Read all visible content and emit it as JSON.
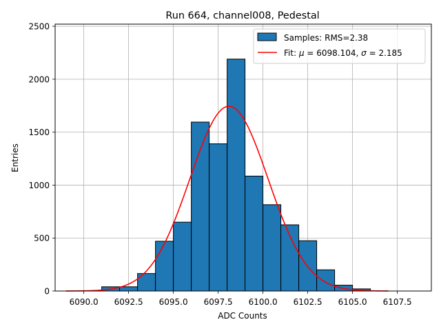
{
  "chart_data": {
    "type": "bar",
    "title": "Run 664, channel008, Pedestal",
    "xlabel": "ADC Counts",
    "ylabel": "Entries",
    "xlim": [
      6088.4,
      6109.4
    ],
    "ylim": [
      0,
      2520
    ],
    "x_ticks": [
      6090.0,
      6092.5,
      6095.0,
      6097.5,
      6100.0,
      6102.5,
      6105.0,
      6107.5
    ],
    "x_tick_labels": [
      "6090.0",
      "6092.5",
      "6095.0",
      "6097.5",
      "6100.0",
      "6102.5",
      "6105.0",
      "6107.5"
    ],
    "y_ticks": [
      0,
      500,
      1000,
      1500,
      2000,
      2500
    ],
    "y_tick_labels": [
      "0",
      "500",
      "1000",
      "1500",
      "2000",
      "2500"
    ],
    "grid": true,
    "legend_placement": "upper-right",
    "histogram": {
      "name": "Samples: RMS=2.38",
      "color": "#1f77b4",
      "edge_color": "#000000",
      "bins": [
        {
          "x0": 6091.0,
          "x1": 6092.0,
          "count": 40
        },
        {
          "x0": 6092.0,
          "x1": 6093.0,
          "count": 40
        },
        {
          "x0": 6093.0,
          "x1": 6094.0,
          "count": 165
        },
        {
          "x0": 6094.0,
          "x1": 6095.0,
          "count": 470
        },
        {
          "x0": 6095.0,
          "x1": 6096.0,
          "count": 650
        },
        {
          "x0": 6096.0,
          "x1": 6097.0,
          "count": 1595
        },
        {
          "x0": 6097.0,
          "x1": 6098.0,
          "count": 1390
        },
        {
          "x0": 6098.0,
          "x1": 6099.0,
          "count": 2190
        },
        {
          "x0": 6099.0,
          "x1": 6100.0,
          "count": 1085
        },
        {
          "x0": 6100.0,
          "x1": 6101.0,
          "count": 815
        },
        {
          "x0": 6101.0,
          "x1": 6102.0,
          "count": 625
        },
        {
          "x0": 6102.0,
          "x1": 6103.0,
          "count": 475
        },
        {
          "x0": 6103.0,
          "x1": 6104.0,
          "count": 200
        },
        {
          "x0": 6104.0,
          "x1": 6105.0,
          "count": 55
        },
        {
          "x0": 6105.0,
          "x1": 6106.0,
          "count": 20
        }
      ]
    },
    "fit": {
      "name": "Fit: μ = 6098.104, σ = 2.185",
      "label_prefix": "Fit: ",
      "mu_symbol": "μ",
      "mu_text": " = 6098.104, ",
      "sigma_symbol": "σ",
      "sigma_text": " = 2.185",
      "mu": 6098.104,
      "sigma": 2.185,
      "amplitude": 1745,
      "x_range": [
        6089.0,
        6107.0
      ],
      "color": "#ff0000"
    }
  }
}
